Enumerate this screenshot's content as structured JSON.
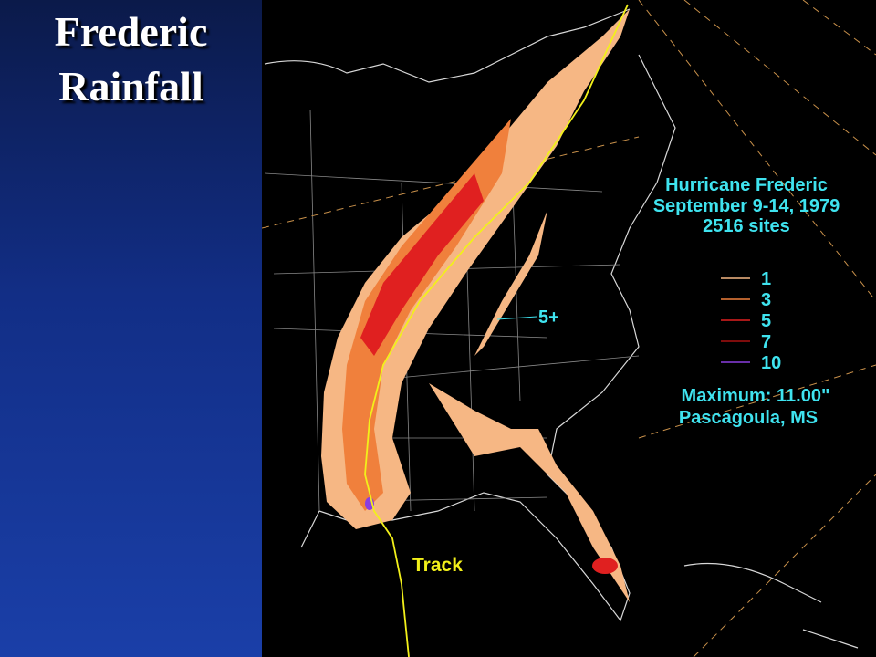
{
  "slide": {
    "title_lines": [
      "Frederic",
      "Rainfall"
    ]
  },
  "map": {
    "heading": [
      "Hurricane Frederic",
      "September 9-14, 1979",
      "2516 sites"
    ],
    "legend": [
      {
        "label": "1",
        "color": "#f6b784"
      },
      {
        "label": "3",
        "color": "#f0803c"
      },
      {
        "label": "5",
        "color": "#e02020"
      },
      {
        "label": "7",
        "color": "#a81010"
      },
      {
        "label": "10",
        "color": "#8a3ee0"
      }
    ],
    "maximum": "Maximum:  11.00\"",
    "location": "Pascagoula, MS",
    "callout": "5+",
    "track_label": "Track",
    "text_color": "#3fe3ef",
    "track_color": "#f2f01a"
  }
}
